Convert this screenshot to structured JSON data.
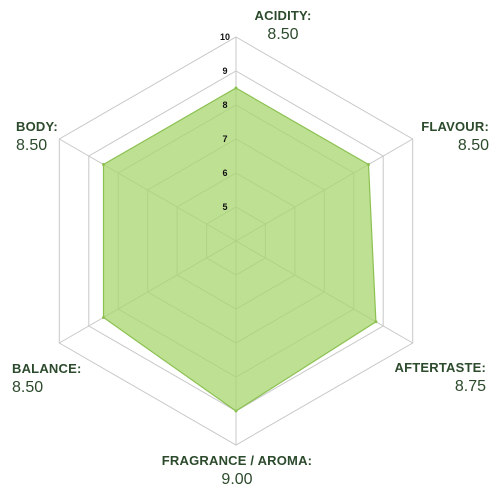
{
  "chart_data": {
    "type": "radar",
    "title": "",
    "categories": [
      "ACIDITY:",
      "FLAVOUR:",
      "AFTERTASTE:",
      "FRAGRANCE / AROMA:",
      "BALANCE:",
      "BODY:"
    ],
    "value_labels": [
      "8.50",
      "8.50",
      "8.75",
      "9.00",
      "8.50",
      "8.50"
    ],
    "values": [
      8.5,
      8.5,
      8.75,
      9.0,
      8.5,
      8.5
    ],
    "rlim": [
      4,
      10
    ],
    "ticks": [
      "5",
      "6",
      "7",
      "8",
      "9",
      "10"
    ],
    "grid": true,
    "colors": {
      "fill": "#a8d56e",
      "stroke": "#8cc152",
      "grid": "#c8c8c8",
      "label": "#2c4a2c"
    }
  }
}
